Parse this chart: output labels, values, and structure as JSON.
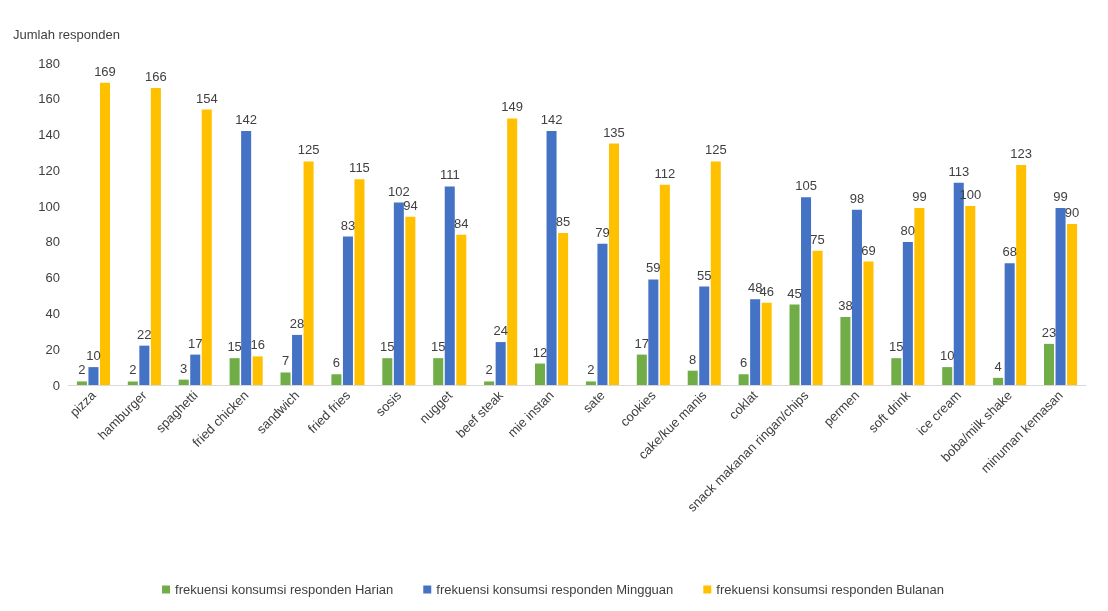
{
  "chart_data": {
    "type": "bar",
    "ylabel": "Jumlah responden",
    "categories": [
      "pizza",
      "hamburger",
      "spaghetti",
      "fried chicken",
      "sandwich",
      "fried fries",
      "sosis",
      "nugget",
      "beef steak",
      "mie instan",
      "sate",
      "cookies",
      "cake/kue manis",
      "coklat",
      "snack makanan ringan/chips",
      "permen",
      "soft drink",
      "ice cream",
      "boba/milk shake",
      "minuman kemasan"
    ],
    "series": [
      {
        "name": "frekuensi konsumsi responden Harian",
        "color": "#70ad47",
        "values": [
          2,
          2,
          3,
          15,
          7,
          6,
          15,
          15,
          2,
          12,
          2,
          17,
          8,
          6,
          45,
          38,
          15,
          10,
          4,
          23
        ]
      },
      {
        "name": "frekuensi konsumsi responden Mingguan",
        "color": "#4472c4",
        "values": [
          10,
          22,
          17,
          142,
          28,
          83,
          102,
          111,
          24,
          142,
          79,
          59,
          55,
          48,
          105,
          98,
          80,
          113,
          68,
          99
        ]
      },
      {
        "name": "frekuensi konsumsi responden Bulanan",
        "color": "#ffc000",
        "values": [
          169,
          166,
          154,
          16,
          125,
          115,
          94,
          84,
          149,
          85,
          135,
          112,
          125,
          46,
          75,
          69,
          99,
          100,
          123,
          90
        ]
      }
    ],
    "ylim": [
      0,
      180
    ],
    "yticks": [
      0,
      20,
      40,
      60,
      80,
      100,
      120,
      140,
      160,
      180
    ],
    "grid": false,
    "legend": "bottom",
    "data_labels": true
  }
}
